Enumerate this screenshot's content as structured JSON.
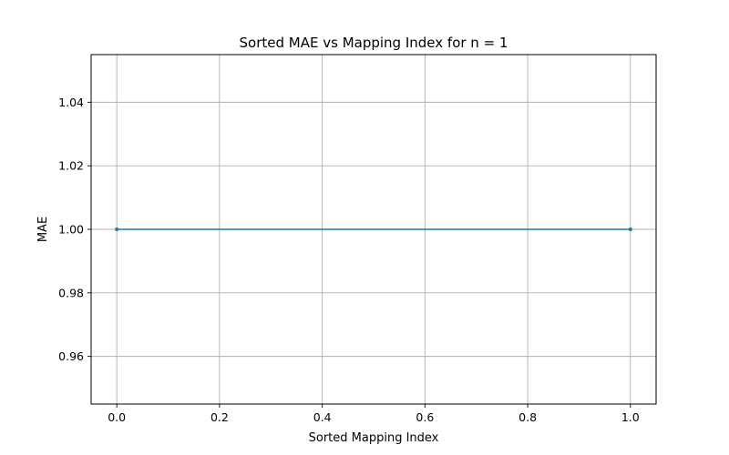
{
  "chart_data": {
    "type": "line",
    "title": "Sorted MAE vs Mapping Index for n = 1",
    "xlabel": "Sorted Mapping Index",
    "ylabel": "MAE",
    "xlim": [
      -0.05,
      1.05
    ],
    "ylim": [
      0.945,
      1.055
    ],
    "xticks": [
      0.0,
      0.2,
      0.4,
      0.6,
      0.8,
      1.0
    ],
    "xtick_labels": [
      "0.0",
      "0.2",
      "0.4",
      "0.6",
      "0.8",
      "1.0"
    ],
    "yticks": [
      0.96,
      0.98,
      1.0,
      1.02,
      1.04
    ],
    "ytick_labels": [
      "0.96",
      "0.98",
      "1.00",
      "1.02",
      "1.04"
    ],
    "grid": true,
    "series": [
      {
        "x": [
          0.0,
          1.0
        ],
        "y": [
          1.0,
          1.0
        ],
        "color": "#1f77b4",
        "marker": "point"
      }
    ]
  }
}
